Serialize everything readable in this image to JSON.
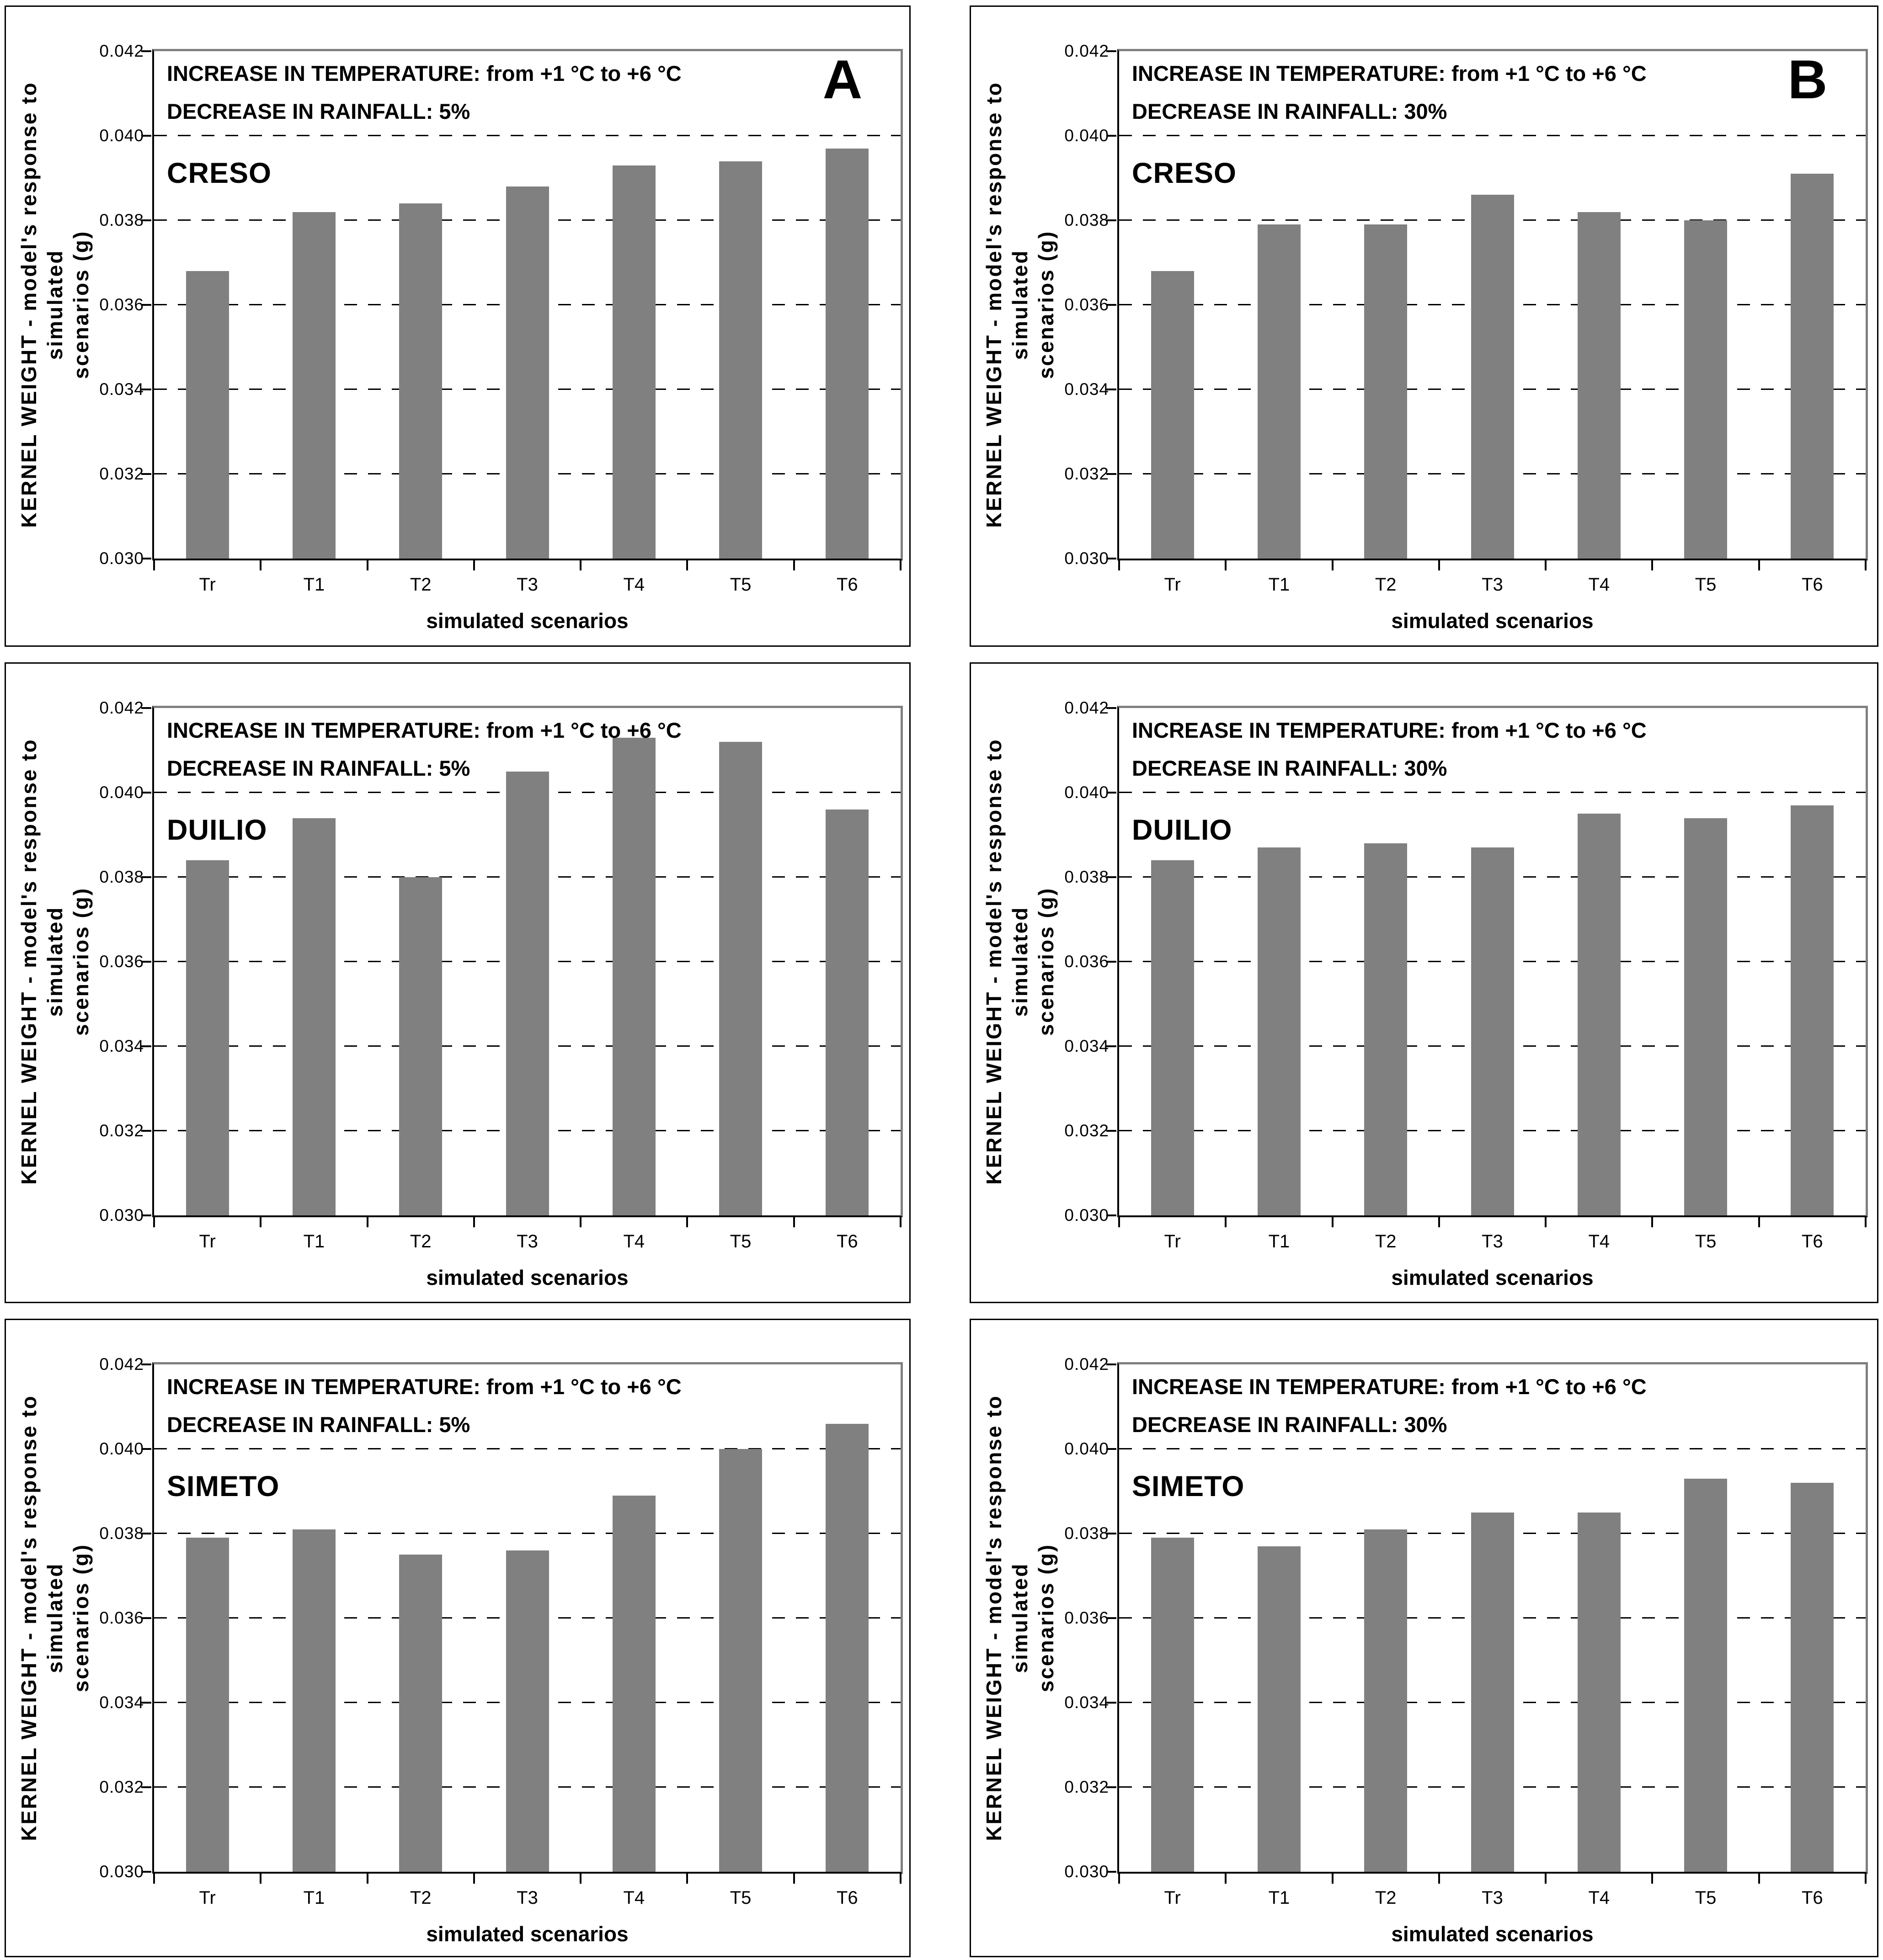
{
  "style": {
    "bar_color": "#808080",
    "plot_frame_color": "#808080",
    "axis_color": "#000000",
    "panel_border_color": "#000000",
    "background_color": "#ffffff",
    "text_color": "#000000"
  },
  "shared": {
    "xlabel": "simulated scenarios",
    "ylabel": "KERNEL WEIGHT - model's response to simulated scenarios (g)",
    "ylabel_lines": [
      "KERNEL WEIGHT - model's response to simulated",
      "scenarios (g)"
    ],
    "categories": [
      "Tr",
      "T1",
      "T2",
      "T3",
      "T4",
      "T5",
      "T6"
    ],
    "ylim": [
      0.03,
      0.042
    ],
    "ytick_step": 0.002,
    "ytick_labels": [
      "0.030",
      "0.032",
      "0.034",
      "0.036",
      "0.038",
      "0.040",
      "0.042"
    ],
    "grid": "dashed-horizontal",
    "legend": "none"
  },
  "chart_data": [
    {
      "type": "bar",
      "panel_letter": "A",
      "variety": "CRESO",
      "temperature_note": "INCREASE IN TEMPERATURE: from +1 °C to +6 °C",
      "rainfall_note": "DECREASE IN RAINFALL: 5%",
      "categories": [
        "Tr",
        "T1",
        "T2",
        "T3",
        "T4",
        "T5",
        "T6"
      ],
      "values": [
        0.0368,
        0.0382,
        0.0384,
        0.0388,
        0.0393,
        0.0394,
        0.0397
      ],
      "xlabel": "simulated scenarios",
      "ylabel": "KERNEL WEIGHT - model's response to simulated scenarios (g)",
      "ylim": [
        0.03,
        0.042
      ]
    },
    {
      "type": "bar",
      "panel_letter": "B",
      "variety": "CRESO",
      "temperature_note": "INCREASE IN TEMPERATURE: from +1 °C to +6 °C",
      "rainfall_note": "DECREASE IN RAINFALL: 30%",
      "categories": [
        "Tr",
        "T1",
        "T2",
        "T3",
        "T4",
        "T5",
        "T6"
      ],
      "values": [
        0.0368,
        0.0379,
        0.0379,
        0.0386,
        0.0382,
        0.038,
        0.0391
      ],
      "xlabel": "simulated scenarios",
      "ylabel": "KERNEL WEIGHT - model's response to simulated scenarios (g)",
      "ylim": [
        0.03,
        0.042
      ]
    },
    {
      "type": "bar",
      "panel_letter": "",
      "variety": "DUILIO",
      "temperature_note": "INCREASE IN TEMPERATURE: from +1 °C to +6 °C",
      "rainfall_note": "DECREASE IN RAINFALL: 5%",
      "categories": [
        "Tr",
        "T1",
        "T2",
        "T3",
        "T4",
        "T5",
        "T6"
      ],
      "values": [
        0.0384,
        0.0394,
        0.038,
        0.0405,
        0.0413,
        0.0412,
        0.0396
      ],
      "xlabel": "simulated scenarios",
      "ylabel": "KERNEL WEIGHT - model's response to simulated scenarios (g)",
      "ylim": [
        0.03,
        0.042
      ]
    },
    {
      "type": "bar",
      "panel_letter": "",
      "variety": "DUILIO",
      "temperature_note": "INCREASE IN TEMPERATURE: from +1 °C to +6 °C",
      "rainfall_note": "DECREASE IN RAINFALL: 30%",
      "categories": [
        "Tr",
        "T1",
        "T2",
        "T3",
        "T4",
        "T5",
        "T6"
      ],
      "values": [
        0.0384,
        0.0387,
        0.0388,
        0.0387,
        0.0395,
        0.0394,
        0.0397
      ],
      "xlabel": "simulated scenarios",
      "ylabel": "KERNEL WEIGHT - model's response to simulated scenarios (g)",
      "ylim": [
        0.03,
        0.042
      ]
    },
    {
      "type": "bar",
      "panel_letter": "",
      "variety": "SIMETO",
      "temperature_note": "INCREASE IN TEMPERATURE: from +1 °C to +6 °C",
      "rainfall_note": "DECREASE IN RAINFALL: 5%",
      "categories": [
        "Tr",
        "T1",
        "T2",
        "T3",
        "T4",
        "T5",
        "T6"
      ],
      "values": [
        0.0379,
        0.0381,
        0.0375,
        0.0376,
        0.0389,
        0.04,
        0.0406
      ],
      "xlabel": "simulated scenarios",
      "ylabel": "KERNEL WEIGHT - model's response to simulated scenarios (g)",
      "ylim": [
        0.03,
        0.042
      ]
    },
    {
      "type": "bar",
      "panel_letter": "",
      "variety": "SIMETO",
      "temperature_note": "INCREASE IN TEMPERATURE: from +1 °C to +6 °C",
      "rainfall_note": "DECREASE IN RAINFALL: 30%",
      "categories": [
        "Tr",
        "T1",
        "T2",
        "T3",
        "T4",
        "T5",
        "T6"
      ],
      "values": [
        0.0379,
        0.0377,
        0.0381,
        0.0385,
        0.0385,
        0.0393,
        0.0392
      ],
      "xlabel": "simulated scenarios",
      "ylabel": "KERNEL WEIGHT - model's response to simulated scenarios (g)",
      "ylim": [
        0.03,
        0.042
      ]
    }
  ]
}
